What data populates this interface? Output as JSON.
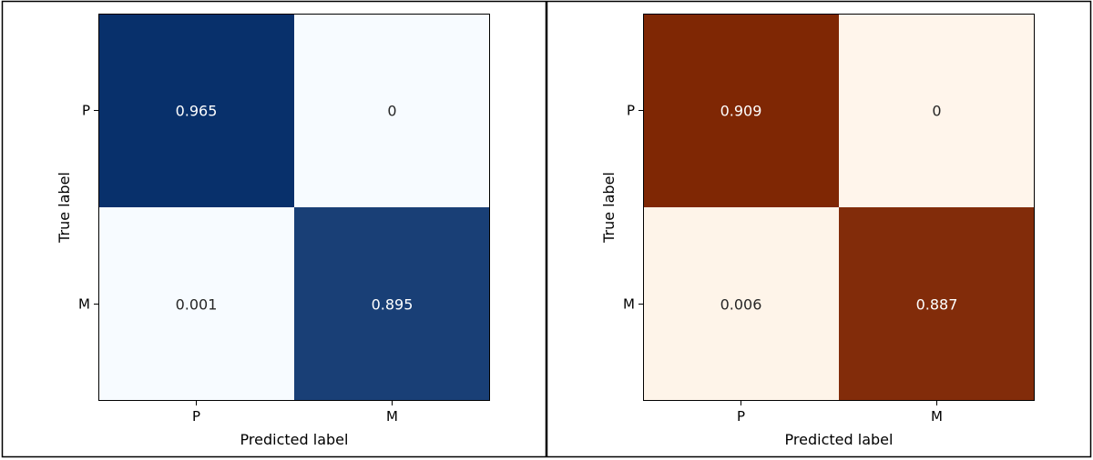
{
  "chart_data": [
    {
      "type": "heatmap",
      "colormap": "blues",
      "colors": {
        "high": "#08306b",
        "mid": "#08488e",
        "low": "#f7fbff"
      },
      "x_categories": [
        "P",
        "M"
      ],
      "y_categories": [
        "P",
        "M"
      ],
      "xlabel": "Predicted label",
      "ylabel": "True label",
      "values": [
        [
          0.965,
          0
        ],
        [
          0.001,
          0.895
        ]
      ],
      "cell_labels": [
        [
          "0.965",
          "0"
        ],
        [
          "0.001",
          "0.895"
        ]
      ]
    },
    {
      "type": "heatmap",
      "colormap": "oranges",
      "colors": {
        "high": "#7f2704",
        "mid": "#872906",
        "low": "#fff5eb"
      },
      "x_categories": [
        "P",
        "M"
      ],
      "y_categories": [
        "P",
        "M"
      ],
      "xlabel": "Predicted label",
      "ylabel": "True label",
      "values": [
        [
          0.909,
          0
        ],
        [
          0.006,
          0.887
        ]
      ],
      "cell_labels": [
        [
          "0.909",
          "0"
        ],
        [
          "0.006",
          "0.887"
        ]
      ]
    }
  ]
}
